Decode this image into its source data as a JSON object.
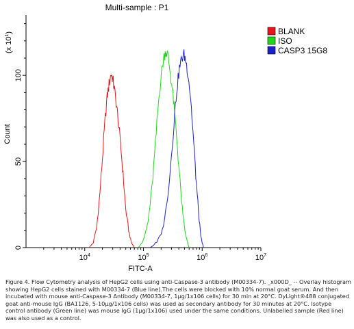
{
  "chart_data": {
    "type": "line",
    "title": "Multi-sample : P1",
    "xlabel": "FITC-A",
    "ylabel": "Count",
    "y_multiplier": "(x 10",
    "y_multiplier_exp": "1",
    "x_scale": "log",
    "xlim": [
      1000,
      10000000
    ],
    "ylim": [
      0,
      135
    ],
    "x_ticks": [
      {
        "base": "10",
        "exp": "4",
        "value": 10000
      },
      {
        "base": "10",
        "exp": "5",
        "value": 100000
      },
      {
        "base": "10",
        "exp": "6",
        "value": 1000000
      },
      {
        "base": "10",
        "exp": "7",
        "value": 10000000
      }
    ],
    "y_ticks": [
      {
        "label": "0",
        "value": 0
      },
      {
        "label": "50",
        "value": 50
      },
      {
        "label": "100",
        "value": 100
      }
    ],
    "legend_position": "right",
    "series": [
      {
        "name": "BLANK",
        "color": "#e8141c",
        "x": [
          12000,
          14000,
          16000,
          18000,
          20000,
          22000,
          24000,
          26000,
          28000,
          30000,
          32000,
          35000,
          38000,
          42000,
          46000,
          50000,
          56000,
          62000,
          70000
        ],
        "y": [
          0,
          3,
          12,
          30,
          52,
          72,
          87,
          95,
          101,
          98,
          92,
          82,
          70,
          55,
          38,
          22,
          10,
          3,
          0
        ]
      },
      {
        "name": "ISO",
        "color": "#1fd61a",
        "x": [
          80000,
          100000,
          120000,
          140000,
          160000,
          180000,
          200000,
          220000,
          240000,
          260000,
          280000,
          310000,
          340000,
          380000,
          420000,
          470000,
          530000,
          600000
        ],
        "y": [
          0,
          4,
          15,
          35,
          60,
          84,
          100,
          110,
          114,
          112,
          104,
          92,
          78,
          58,
          38,
          18,
          6,
          0
        ]
      },
      {
        "name": "CASP3 15G8",
        "color": "#1a1fc8",
        "x": [
          130000,
          170000,
          210000,
          250000,
          290000,
          330000,
          370000,
          410000,
          450000,
          490000,
          530000,
          580000,
          640000,
          700000,
          780000,
          870000,
          950000,
          1050000
        ],
        "y": [
          0,
          3,
          10,
          25,
          48,
          72,
          92,
          104,
          110,
          112,
          108,
          100,
          86,
          66,
          42,
          20,
          6,
          0
        ]
      }
    ]
  },
  "caption": "Figure 4. Flow Cytometry analysis of HepG2 cells using anti-Caspase-3 antibody (M00334-7). _x000D_ -- Overlay histogram showing HepG2 cells stained with M00334-7 (Blue line).The cells were blocked with 10% normal goat serum. And then incubated with mouse anti-Caspase-3 Antibody (M00334-7, 1µg/1x106 cells) for 30 min at 20°C. DyLight®488 conjugated goat anti-mouse IgG (BA1126, 5-10µg/1x106 cells) was used as secondary antibody for 30 minutes at 20°C. Isotype control antibody (Green line) was mouse IgG (1µg/1x106) used under the same conditions. Unlabelled sample (Red line) was also used as a control."
}
